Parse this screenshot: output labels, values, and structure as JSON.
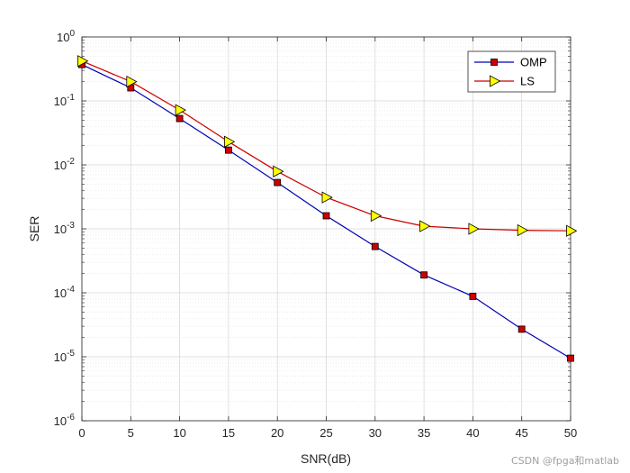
{
  "watermark": "CSDN @fpga和matlab",
  "chart_data": {
    "type": "line",
    "xlabel": "SNR(dB)",
    "ylabel": "SER",
    "xlim": [
      0,
      50
    ],
    "ylim_exp": [
      -6,
      0
    ],
    "y_scale": "log",
    "grid": true,
    "legend_location": "top-right",
    "x_ticks": [
      "0",
      "5",
      "10",
      "15",
      "20",
      "25",
      "30",
      "35",
      "40",
      "45",
      "50"
    ],
    "y_ticks": [
      {
        "base": "10",
        "exp": "0"
      },
      {
        "base": "10",
        "exp": "-1"
      },
      {
        "base": "10",
        "exp": "-2"
      },
      {
        "base": "10",
        "exp": "-3"
      },
      {
        "base": "10",
        "exp": "-4"
      },
      {
        "base": "10",
        "exp": "-5"
      },
      {
        "base": "10",
        "exp": "-6"
      }
    ],
    "x": [
      0,
      5,
      10,
      15,
      20,
      25,
      30,
      35,
      40,
      45,
      50
    ],
    "series": [
      {
        "name": "OMP",
        "color": "#0000b4",
        "marker": "square",
        "marker_fill": "#cc0000",
        "values": [
          0.37,
          0.16,
          0.053,
          0.017,
          0.0053,
          0.0016,
          0.00053,
          0.00019,
          8.8e-05,
          2.7e-05,
          9.5e-06
        ]
      },
      {
        "name": "LS",
        "color": "#cc0000",
        "marker": "triangle-right",
        "marker_fill": "#ffff00",
        "values": [
          0.42,
          0.2,
          0.072,
          0.023,
          0.0079,
          0.0031,
          0.0016,
          0.0011,
          0.001,
          0.00095,
          0.00093
        ]
      }
    ]
  }
}
